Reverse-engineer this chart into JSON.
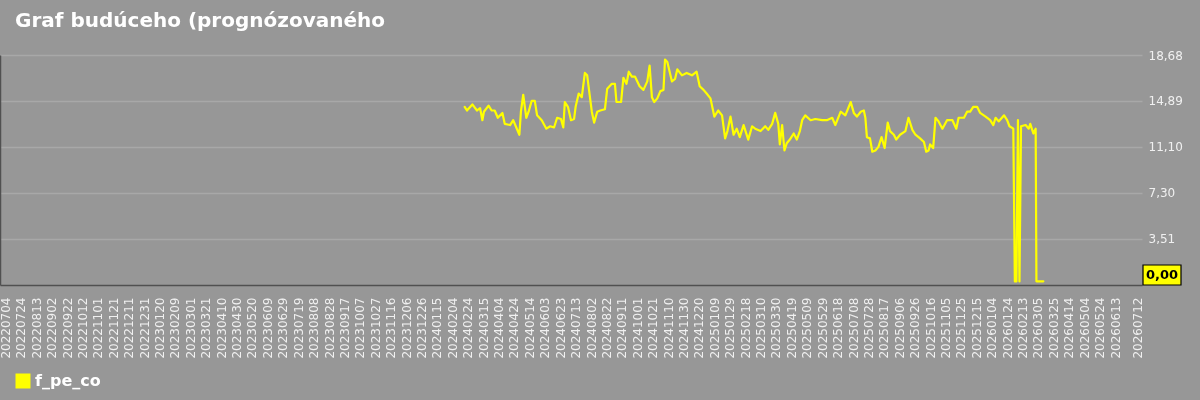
{
  "chart_data": {
    "type": "line",
    "title": "Graf budúceho (prognózovaného",
    "xlim": [
      "2022-06-27",
      "2026-07-18"
    ],
    "xticks": [
      {
        "value": "2022-07-04",
        "label": "20220704"
      },
      {
        "value": "2022-07-24",
        "label": "20220724"
      },
      {
        "value": "2022-08-13",
        "label": "20220813"
      },
      {
        "value": "2022-09-02",
        "label": "20220902"
      },
      {
        "value": "2022-09-22",
        "label": "20220922"
      },
      {
        "value": "2022-10-12",
        "label": "20221012"
      },
      {
        "value": "2022-11-01",
        "label": "20221101"
      },
      {
        "value": "2022-11-21",
        "label": "20221121"
      },
      {
        "value": "2022-12-11",
        "label": "20221211"
      },
      {
        "value": "2022-12-31",
        "label": "20221231"
      },
      {
        "value": "2023-01-20",
        "label": "20230120"
      },
      {
        "value": "2023-02-09",
        "label": "20230209"
      },
      {
        "value": "2023-03-01",
        "label": "20230301"
      },
      {
        "value": "2023-03-21",
        "label": "20230321"
      },
      {
        "value": "2023-04-10",
        "label": "20230410"
      },
      {
        "value": "2023-04-30",
        "label": "20230430"
      },
      {
        "value": "2023-05-20",
        "label": "20230520"
      },
      {
        "value": "2023-06-09",
        "label": "20230609"
      },
      {
        "value": "2023-06-29",
        "label": "20230629"
      },
      {
        "value": "2023-07-19",
        "label": "20230719"
      },
      {
        "value": "2023-08-08",
        "label": "20230808"
      },
      {
        "value": "2023-08-28",
        "label": "20230828"
      },
      {
        "value": "2023-09-17",
        "label": "20230917"
      },
      {
        "value": "2023-10-07",
        "label": "20231007"
      },
      {
        "value": "2023-10-27",
        "label": "20231027"
      },
      {
        "value": "2023-11-16",
        "label": "20231116"
      },
      {
        "value": "2023-12-06",
        "label": "20231206"
      },
      {
        "value": "2023-12-26",
        "label": "20231226"
      },
      {
        "value": "2024-01-15",
        "label": "20240115"
      },
      {
        "value": "2024-02-04",
        "label": "20240204"
      },
      {
        "value": "2024-02-24",
        "label": "20240224"
      },
      {
        "value": "2024-03-15",
        "label": "20240315"
      },
      {
        "value": "2024-04-04",
        "label": "20240404"
      },
      {
        "value": "2024-04-24",
        "label": "20240424"
      },
      {
        "value": "2024-05-14",
        "label": "20240514"
      },
      {
        "value": "2024-06-03",
        "label": "20240603"
      },
      {
        "value": "2024-06-23",
        "label": "20240623"
      },
      {
        "value": "2024-07-13",
        "label": "20240713"
      },
      {
        "value": "2024-08-02",
        "label": "20240802"
      },
      {
        "value": "2024-08-22",
        "label": "20240822"
      },
      {
        "value": "2024-09-11",
        "label": "20240911"
      },
      {
        "value": "2024-10-01",
        "label": "20241001"
      },
      {
        "value": "2024-10-21",
        "label": "20241021"
      },
      {
        "value": "2024-11-10",
        "label": "20241110"
      },
      {
        "value": "2024-11-30",
        "label": "20241130"
      },
      {
        "value": "2024-12-20",
        "label": "20241220"
      },
      {
        "value": "2025-01-09",
        "label": "20250109"
      },
      {
        "value": "2025-01-29",
        "label": "20250129"
      },
      {
        "value": "2025-02-18",
        "label": "20250218"
      },
      {
        "value": "2025-03-10",
        "label": "20250310"
      },
      {
        "value": "2025-03-30",
        "label": "20250330"
      },
      {
        "value": "2025-04-19",
        "label": "20250419"
      },
      {
        "value": "2025-05-09",
        "label": "20250509"
      },
      {
        "value": "2025-05-29",
        "label": "20250529"
      },
      {
        "value": "2025-06-18",
        "label": "20250618"
      },
      {
        "value": "2025-07-08",
        "label": "20250708"
      },
      {
        "value": "2025-07-28",
        "label": "20250728"
      },
      {
        "value": "2025-08-17",
        "label": "20250817"
      },
      {
        "value": "2025-09-06",
        "label": "20250906"
      },
      {
        "value": "2025-09-26",
        "label": "20250926"
      },
      {
        "value": "2025-10-16",
        "label": "20251016"
      },
      {
        "value": "2025-11-05",
        "label": "20251105"
      },
      {
        "value": "2025-11-25",
        "label": "20251125"
      },
      {
        "value": "2025-12-15",
        "label": "20251215"
      },
      {
        "value": "2026-01-04",
        "label": "20260104"
      },
      {
        "value": "2026-01-24",
        "label": "20260124"
      },
      {
        "value": "2026-02-13",
        "label": "20260213"
      },
      {
        "value": "2026-03-05",
        "label": "20260305"
      },
      {
        "value": "2026-03-25",
        "label": "20260325"
      },
      {
        "value": "2026-04-14",
        "label": "20260414"
      },
      {
        "value": "2026-05-04",
        "label": "20260504"
      },
      {
        "value": "2026-05-24",
        "label": "20260524"
      },
      {
        "value": "2026-06-13",
        "label": "20260613"
      },
      {
        "value": "2026-07-12",
        "label": "20260712"
      }
    ],
    "ylim": [
      -0.3,
      18.68
    ],
    "yticks": [
      {
        "value": 3.51,
        "label": "3,51"
      },
      {
        "value": 7.3,
        "label": "7,30"
      },
      {
        "value": 11.1,
        "label": "11,10"
      },
      {
        "value": 14.89,
        "label": "14,89"
      },
      {
        "value": 18.68,
        "label": "18,68"
      }
    ],
    "grid": "y",
    "legend": "bottom",
    "annotations": [
      "0,00"
    ],
    "series": [
      {
        "name": "f_pe_co",
        "color": "#ffff00",
        "x": [
          "2024-02-20",
          "2024-02-23",
          "2024-03-01",
          "2024-03-07",
          "2024-03-11",
          "2024-03-14",
          "2024-03-16",
          "2024-03-22",
          "2024-03-26",
          "2024-03-30",
          "2024-04-03",
          "2024-04-09",
          "2024-04-12",
          "2024-04-19",
          "2024-04-23",
          "2024-04-27",
          "2024-05-01",
          "2024-05-03",
          "2024-05-06",
          "2024-05-10",
          "2024-05-13",
          "2024-05-17",
          "2024-05-21",
          "2024-05-24",
          "2024-05-30",
          "2024-06-05",
          "2024-06-10",
          "2024-06-15",
          "2024-06-19",
          "2024-06-24",
          "2024-06-27",
          "2024-06-29",
          "2024-07-03",
          "2024-07-07",
          "2024-07-11",
          "2024-07-13",
          "2024-07-17",
          "2024-07-21",
          "2024-07-25",
          "2024-07-28",
          "2024-07-31",
          "2024-08-03",
          "2024-08-06",
          "2024-08-10",
          "2024-08-14",
          "2024-08-20",
          "2024-08-23",
          "2024-08-29",
          "2024-09-02",
          "2024-09-04",
          "2024-09-10",
          "2024-09-13",
          "2024-09-17",
          "2024-09-20",
          "2024-09-24",
          "2024-09-28",
          "2024-10-04",
          "2024-10-09",
          "2024-10-14",
          "2024-10-17",
          "2024-10-20",
          "2024-10-23",
          "2024-10-27",
          "2024-10-31",
          "2024-11-04",
          "2024-11-06",
          "2024-11-09",
          "2024-11-15",
          "2024-11-19",
          "2024-11-22",
          "2024-11-28",
          "2024-12-04",
          "2024-12-11",
          "2024-12-17",
          "2024-12-21",
          "2024-12-26",
          "2024-12-30",
          "2025-01-04",
          "2025-01-09",
          "2025-01-14",
          "2025-01-19",
          "2025-01-23",
          "2025-01-26",
          "2025-01-30",
          "2025-02-03",
          "2025-02-07",
          "2025-02-11",
          "2025-02-16",
          "2025-02-22",
          "2025-02-27",
          "2025-03-03",
          "2025-03-10",
          "2025-03-16",
          "2025-03-20",
          "2025-03-25",
          "2025-03-29",
          "2025-04-02",
          "2025-04-04",
          "2025-04-07",
          "2025-04-10",
          "2025-04-13",
          "2025-04-17",
          "2025-04-22",
          "2025-04-26",
          "2025-04-30",
          "2025-05-03",
          "2025-05-07",
          "2025-05-14",
          "2025-05-20",
          "2025-05-29",
          "2025-06-04",
          "2025-06-11",
          "2025-06-15",
          "2025-06-22",
          "2025-06-28",
          "2025-07-05",
          "2025-07-09",
          "2025-07-13",
          "2025-07-18",
          "2025-07-22",
          "2025-07-24",
          "2025-07-26",
          "2025-07-30",
          "2025-08-02",
          "2025-08-06",
          "2025-08-10",
          "2025-08-14",
          "2025-08-18",
          "2025-08-22",
          "2025-08-25",
          "2025-08-30",
          "2025-09-02",
          "2025-09-07",
          "2025-09-14",
          "2025-09-18",
          "2025-09-23",
          "2025-09-27",
          "2025-10-03",
          "2025-10-08",
          "2025-10-11",
          "2025-10-14",
          "2025-10-16",
          "2025-10-20",
          "2025-10-23",
          "2025-10-27",
          "2025-11-01",
          "2025-11-07",
          "2025-11-14",
          "2025-11-19",
          "2025-11-22",
          "2025-11-29",
          "2025-12-03",
          "2025-12-07",
          "2025-12-11",
          "2025-12-16",
          "2025-12-20",
          "2025-12-27",
          "2026-01-02",
          "2026-01-06",
          "2026-01-09",
          "2026-01-13",
          "2026-01-20",
          "2026-01-24",
          "2026-01-27",
          "2026-02-01",
          "2026-02-03",
          "2026-02-05",
          "2026-02-07",
          "2026-02-09",
          "2026-02-11",
          "2026-02-17",
          "2026-02-21",
          "2026-02-23",
          "2026-02-27",
          "2026-03-02",
          "2026-03-03",
          "2026-03-12"
        ],
        "values": [
          14.4,
          14.1,
          14.6,
          14.1,
          14.3,
          13.3,
          14.0,
          14.5,
          14.1,
          14.1,
          13.5,
          13.9,
          13.0,
          12.9,
          13.3,
          12.7,
          12.1,
          14.0,
          15.4,
          13.5,
          14.0,
          14.9,
          14.9,
          13.7,
          13.3,
          12.6,
          12.8,
          12.7,
          13.5,
          13.4,
          12.7,
          14.8,
          14.4,
          13.3,
          13.4,
          14.4,
          15.5,
          15.2,
          17.2,
          17.0,
          15.5,
          14.0,
          13.1,
          14.0,
          14.1,
          14.2,
          15.9,
          16.3,
          16.3,
          14.8,
          14.8,
          16.8,
          16.3,
          17.3,
          16.9,
          16.9,
          16.1,
          15.8,
          16.5,
          17.8,
          15.2,
          14.8,
          15.1,
          15.7,
          15.8,
          18.3,
          18.1,
          16.5,
          16.7,
          17.5,
          17.0,
          17.2,
          17.0,
          17.3,
          16.1,
          15.8,
          15.5,
          15.1,
          13.6,
          14.1,
          13.7,
          11.8,
          12.4,
          13.6,
          12.1,
          12.6,
          11.9,
          12.9,
          11.7,
          12.8,
          12.6,
          12.4,
          12.8,
          12.5,
          13.0,
          13.9,
          13.0,
          11.3,
          12.9,
          10.8,
          11.4,
          11.7,
          12.2,
          11.7,
          12.4,
          13.3,
          13.7,
          13.3,
          13.4,
          13.3,
          13.3,
          13.5,
          12.9,
          14.0,
          13.7,
          14.8,
          13.9,
          13.6,
          14.0,
          14.1,
          13.5,
          11.9,
          11.8,
          10.7,
          10.8,
          11.1,
          11.9,
          11.0,
          13.1,
          12.4,
          12.1,
          11.7,
          12.1,
          12.4,
          13.5,
          12.5,
          12.1,
          11.8,
          11.5,
          10.7,
          10.8,
          11.3,
          11.0,
          13.5,
          13.2,
          12.6,
          13.3,
          13.3,
          12.6,
          13.5,
          13.5,
          14.0,
          14.0,
          14.4,
          14.4,
          13.9,
          13.6,
          13.3,
          12.9,
          13.5,
          13.2,
          13.7,
          13.3,
          12.8,
          12.6,
          0,
          0,
          13.3,
          0,
          12.8,
          12.9,
          12.6,
          13.0,
          12.2,
          12.6,
          0,
          0
        ]
      }
    ]
  }
}
